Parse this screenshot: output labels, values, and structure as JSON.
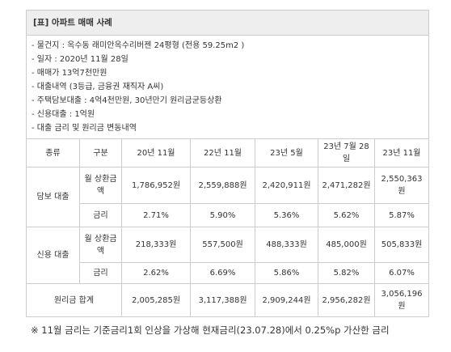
{
  "header": {
    "title": "[표] 아파트 매매 사례"
  },
  "info": [
    "- 물건지 : 옥수동 래미안옥수리버젠 24평형 (전용 59.25m2 )",
    "- 일자 : 2020년 11월 28일",
    "- 매매가 13억7천만원",
    "- 대출내역 (3등급, 금융권 재직자 A씨)",
    "- 주택담보대출 : 4억4천만원, 30년만기 원리금균등상환",
    "- 신용대출 : 1억원",
    "- 대출 금리 및 원리금 변동내역"
  ],
  "table": {
    "columns": [
      "종류",
      "구분",
      "20년 11월",
      "22년 11월",
      "23년 5월",
      "23년 7월 28일",
      "23년 11월"
    ],
    "rows": [
      [
        "담보 대출",
        "월 상환금액",
        "1,786,952원",
        "2,559,888원",
        "2,420,911원",
        "2,471,282원",
        "2,550,363원"
      ],
      [
        "금리",
        "2.71%",
        "5.90%",
        "5.36%",
        "5.62%",
        "5.87%"
      ],
      [
        "신용 대출",
        "월 상환금액",
        "218,333원",
        "557,500원",
        "488,333원",
        "485,000원",
        "505,833원"
      ],
      [
        "금리",
        "2.62%",
        "6.69%",
        "5.86%",
        "5.82%",
        "6.07%"
      ],
      [
        "원리금 합계",
        "2,005,285원",
        "3,117,388원",
        "2,909,244원",
        "2,956,282원",
        "3,056,196원"
      ]
    ]
  },
  "footnote": "※ 11월 금리는 기준금리1회 인상을 가상해 현재금리(23.07.28)에서 0.25%p 가산한 금리"
}
